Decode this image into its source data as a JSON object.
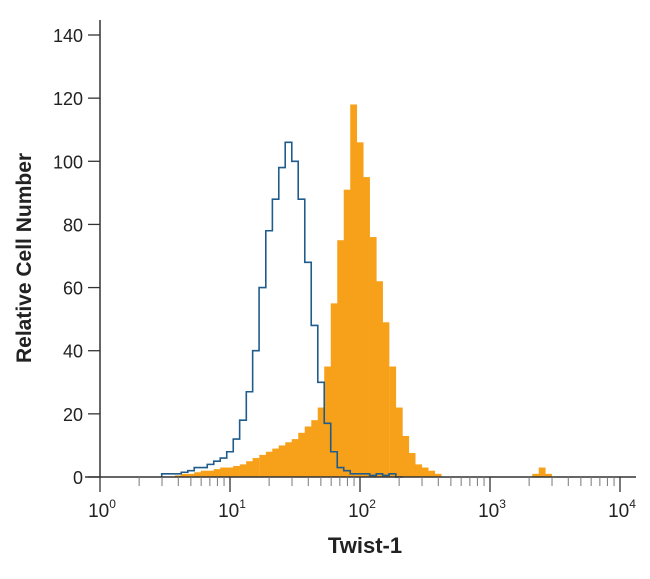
{
  "chart_data": {
    "type": "area",
    "title": "",
    "xlabel": "Twist-1",
    "ylabel": "Relative Cell Number",
    "xscale": "log",
    "xlim": [
      1,
      10000
    ],
    "ylim": [
      0,
      140
    ],
    "grid": false,
    "x_tick_labels": [
      {
        "base": "10",
        "exp": "0",
        "value": 1
      },
      {
        "base": "10",
        "exp": "1",
        "value": 10
      },
      {
        "base": "10",
        "exp": "2",
        "value": 100
      },
      {
        "base": "10",
        "exp": "3",
        "value": 1000
      },
      {
        "base": "10",
        "exp": "4",
        "value": 10000
      }
    ],
    "y_ticks": [
      "0",
      "20",
      "40",
      "60",
      "80",
      "100",
      "120",
      "140"
    ],
    "series": [
      {
        "style": "filled",
        "color": "#F7A11A",
        "x": [
          3.98,
          4.47,
          5.01,
          5.62,
          6.31,
          7.08,
          7.94,
          8.91,
          10,
          11.2,
          12.6,
          14.1,
          15.8,
          17.8,
          20.0,
          22.4,
          25.1,
          28.2,
          31.6,
          35.5,
          39.8,
          44.7,
          50.1,
          56.2,
          63.1,
          70.8,
          79.4,
          89.1,
          100,
          112,
          126,
          141,
          158,
          178,
          200,
          224,
          251,
          282,
          316,
          355,
          398,
          2239,
          2512,
          2818
        ],
        "y": [
          0.5,
          1,
          1,
          1.5,
          2,
          2,
          2.5,
          3,
          3,
          3.5,
          4,
          5,
          6,
          7,
          8,
          9,
          10,
          11,
          12,
          14,
          16,
          18,
          22,
          35,
          55,
          75,
          91,
          118,
          106,
          95,
          76,
          62,
          49,
          35,
          22,
          13,
          7.6,
          4,
          3,
          2,
          1,
          1,
          3,
          1
        ]
      },
      {
        "style": "outline",
        "color": "#1F5C8B",
        "x": [
          3.16,
          3.55,
          3.98,
          4.47,
          5.01,
          5.62,
          6.31,
          7.08,
          7.94,
          8.91,
          10,
          11.2,
          12.6,
          14.1,
          15.8,
          17.8,
          20.0,
          22.4,
          25.1,
          28.2,
          31.6,
          35.5,
          39.8,
          44.7,
          50.1,
          56.2,
          63.1,
          70.8,
          79.4,
          89.1,
          100,
          112,
          126,
          141,
          158,
          178,
          200
        ],
        "y": [
          1,
          1,
          1,
          1.5,
          2,
          3,
          3,
          4,
          5,
          6,
          8,
          12,
          18,
          27,
          40,
          60,
          78,
          88,
          98,
          106,
          100,
          88,
          68,
          48,
          30,
          17,
          8,
          3,
          2,
          1,
          1,
          1,
          0.5,
          1,
          0.5,
          1,
          0
        ]
      }
    ]
  }
}
